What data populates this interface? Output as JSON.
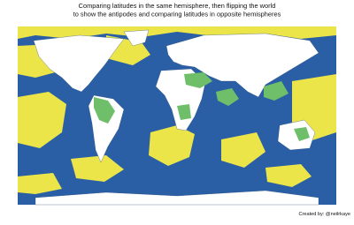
{
  "header": {
    "title_lines": [
      "Comparing latitudes in the same hemisphere, then flipping the world",
      "to show the antipodes and comparing latitudes in opposite hemispheres"
    ]
  },
  "footer": {
    "credit": "Created by:  @neilrkaye"
  }
}
